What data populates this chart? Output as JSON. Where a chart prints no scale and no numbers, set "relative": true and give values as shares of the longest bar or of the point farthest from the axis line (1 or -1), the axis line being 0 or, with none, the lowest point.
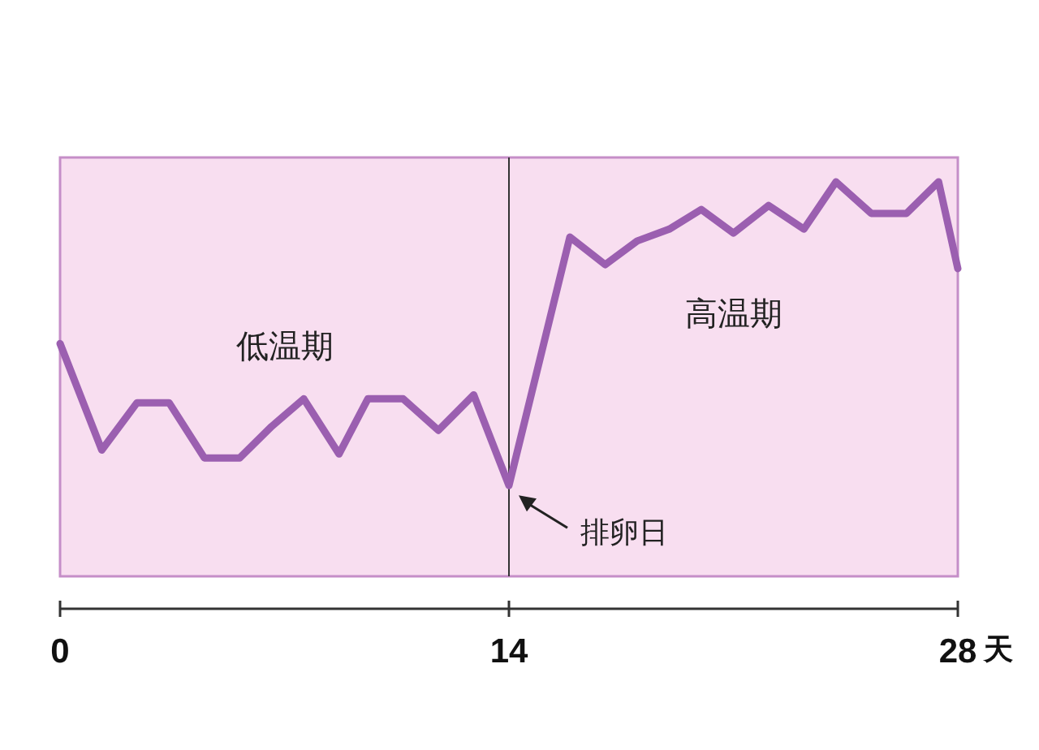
{
  "chart_data": {
    "type": "line",
    "relative": true,
    "xlabel": "天",
    "xlim": [
      0,
      28
    ],
    "xticks": [
      0,
      14,
      28
    ],
    "x": [
      0,
      1.3,
      2.4,
      3.4,
      4.5,
      5.6,
      6.6,
      7.6,
      8.7,
      9.6,
      10.7,
      11.8,
      12.9,
      14,
      15.9,
      17,
      18,
      19,
      20,
      21,
      22.1,
      23.2,
      24.2,
      25.3,
      26.4,
      27.4,
      28
    ],
    "series": [
      {
        "color": "#9b5fb0",
        "values": [
          0.59,
          0.32,
          0.44,
          0.44,
          0.3,
          0.3,
          0.38,
          0.45,
          0.31,
          0.45,
          0.45,
          0.37,
          0.46,
          0.23,
          0.86,
          0.79,
          0.85,
          0.88,
          0.93,
          0.87,
          0.94,
          0.88,
          1,
          0.92,
          0.92,
          1,
          0.78
        ]
      }
    ],
    "bands": [
      {
        "axis": "x",
        "from": 0,
        "to": 14,
        "label": "低温期",
        "color": "#f8def0"
      },
      {
        "axis": "x",
        "from": 14,
        "to": 28,
        "label": "高温期",
        "color": "#f8def0"
      }
    ],
    "ref_lines": [
      {
        "axis": "x",
        "value": 14,
        "color": "#333333"
      }
    ],
    "annotations": [
      {
        "text": "排卵日",
        "x": 14,
        "y": 0.23
      }
    ],
    "line_style": "solid",
    "marker": "none",
    "grid": false
  }
}
